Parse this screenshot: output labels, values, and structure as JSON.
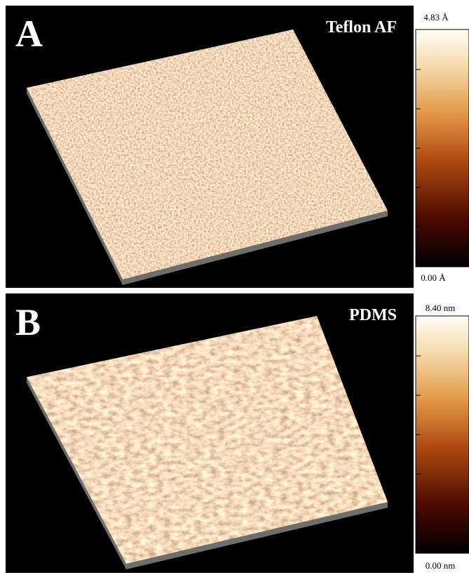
{
  "panels": [
    {
      "letter": "A",
      "label": "Teflon AF",
      "scale_max": "4.83 Å",
      "scale_min": "0.00 Å"
    },
    {
      "letter": "B",
      "label": "PDMS",
      "scale_max": "8.40 nm",
      "scale_min": "0.00 nm"
    }
  ]
}
